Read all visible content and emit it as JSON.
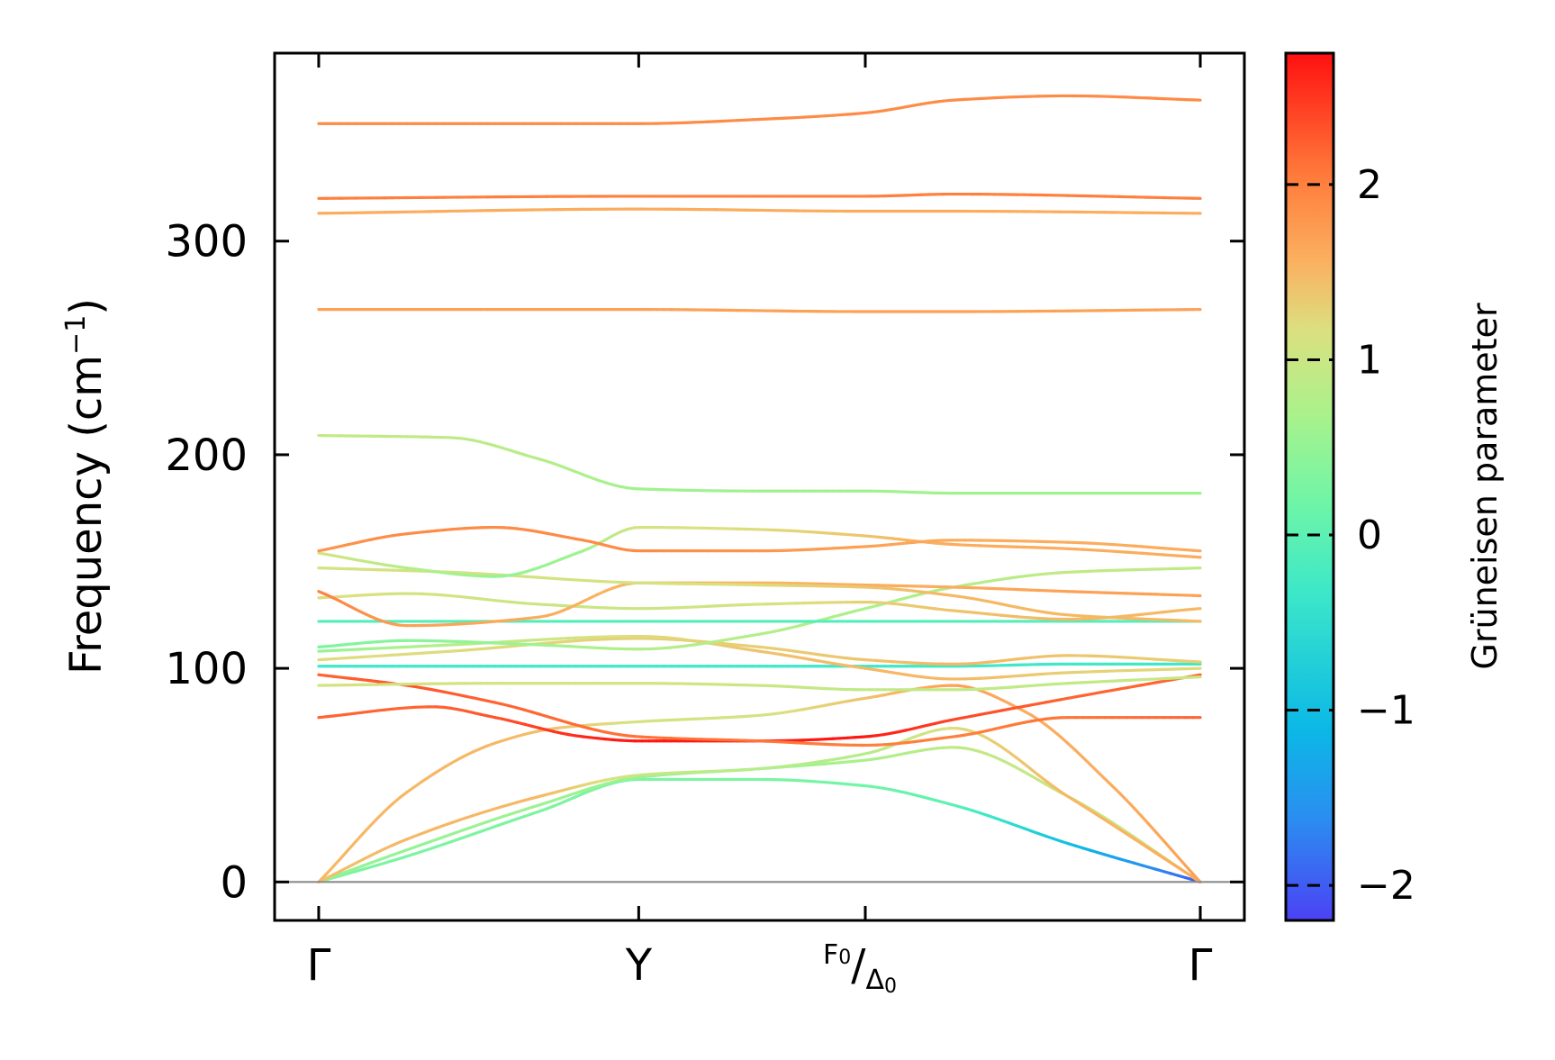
{
  "chart_data": {
    "type": "line",
    "title": "",
    "xlabel": "",
    "ylabel": "Frequency (cm",
    "ylabel_sup": "−1",
    "ylabel_close": ")",
    "ylim": [
      -18,
      388
    ],
    "yticks": [
      0,
      100,
      200,
      300
    ],
    "ytick_labels": [
      "0",
      "100",
      "200",
      "300"
    ],
    "xlim": [
      -0.05,
      1.05
    ],
    "high_symmetry_points": [
      {
        "label": "Γ",
        "x": 0.0
      },
      {
        "label": "Y",
        "x": 0.363
      },
      {
        "label": "F0/Δ0",
        "label_main": "F",
        "label_sub": "0",
        "label_slash": "/",
        "label_denominator": "Δ",
        "label_denominator_sub": "0",
        "x": 0.62
      },
      {
        "label": "Γ",
        "x": 1.0
      }
    ],
    "colorbar": {
      "label": "Grüneisen parameter",
      "vmin": -2.2,
      "vmax": 2.75,
      "ticks": [
        -2,
        -1,
        0,
        1,
        2
      ],
      "tick_labels": [
        "−2",
        "−1",
        "0",
        "1",
        "2"
      ],
      "colormap": "rainbow"
    },
    "series": [
      {
        "name": "branch-1",
        "x": [
          0,
          0.1,
          0.25,
          0.363,
          0.5,
          0.62,
          0.72,
          0.85,
          1.0
        ],
        "y": [
          0,
          12,
          33,
          48,
          48,
          45,
          36,
          18,
          0
        ],
        "gamma": [
          0.3,
          0.3,
          0.3,
          0.3,
          0.3,
          0.2,
          0.0,
          -1.0,
          -2.0
        ]
      },
      {
        "name": "branch-2",
        "x": [
          0,
          0.1,
          0.25,
          0.363,
          0.5,
          0.62,
          0.72,
          0.85,
          1.0
        ],
        "y": [
          0,
          15,
          36,
          49,
          53,
          57,
          63,
          40,
          0
        ],
        "gamma": [
          0.5,
          0.5,
          0.6,
          0.5,
          0.5,
          0.7,
          0.9,
          1.0,
          1.0
        ]
      },
      {
        "name": "branch-3",
        "x": [
          0,
          0.1,
          0.25,
          0.363,
          0.5,
          0.62,
          0.72,
          0.85,
          1.0
        ],
        "y": [
          0,
          20,
          40,
          50,
          53,
          60,
          72,
          40,
          0
        ],
        "gamma": [
          1.4,
          1.5,
          1.5,
          1.0,
          0.8,
          0.8,
          1.2,
          1.5,
          1.6
        ]
      },
      {
        "name": "branch-4",
        "x": [
          0,
          0.1,
          0.2,
          0.27,
          0.363,
          0.5,
          0.62,
          0.72,
          0.8,
          0.9,
          1.0
        ],
        "y": [
          0,
          42,
          65,
          72,
          75,
          78,
          86,
          92,
          80,
          45,
          0
        ],
        "gamma": [
          1.5,
          1.5,
          1.5,
          1.4,
          1.1,
          1.1,
          1.4,
          1.7,
          1.6,
          1.6,
          1.7
        ]
      },
      {
        "name": "branch-5",
        "x": [
          0,
          0.13,
          0.2,
          0.3,
          0.363,
          0.5,
          0.62,
          0.72,
          0.85,
          1.0
        ],
        "y": [
          77,
          82,
          77,
          68,
          66,
          66,
          68,
          76,
          86,
          97
        ],
        "gamma": [
          2.2,
          2.2,
          2.3,
          2.6,
          2.7,
          2.7,
          2.7,
          2.4,
          2.2,
          2.2
        ]
      },
      {
        "name": "branch-6",
        "x": [
          0,
          0.1,
          0.2,
          0.363,
          0.5,
          0.62,
          0.72,
          0.85,
          1.0
        ],
        "y": [
          97,
          92,
          84,
          68,
          66,
          64,
          68,
          77,
          77
        ],
        "gamma": [
          2.2,
          2.3,
          2.2,
          2.1,
          2.1,
          2.0,
          2.0,
          2.1,
          2.2
        ]
      },
      {
        "name": "branch-7",
        "x": [
          0,
          0.2,
          0.363,
          0.5,
          0.62,
          0.72,
          0.85,
          1.0
        ],
        "y": [
          92,
          93,
          93,
          92,
          90,
          90,
          93,
          96
        ],
        "gamma": [
          1.1,
          1.1,
          1.1,
          1.0,
          0.9,
          0.9,
          0.9,
          1.0
        ]
      },
      {
        "name": "branch-8",
        "x": [
          0,
          0.15,
          0.363,
          0.5,
          0.62,
          0.72,
          0.85,
          1.0
        ],
        "y": [
          101,
          101,
          101,
          101,
          101,
          101,
          102,
          102
        ],
        "gamma": [
          -0.3,
          -0.3,
          -0.3,
          -0.3,
          -0.3,
          -0.3,
          -0.3,
          -0.3
        ]
      },
      {
        "name": "branch-9",
        "x": [
          0,
          0.15,
          0.363,
          0.5,
          0.62,
          0.72,
          0.85,
          1.0
        ],
        "y": [
          104,
          108,
          114,
          110,
          104,
          102,
          106,
          103
        ],
        "gamma": [
          1.2,
          1.2,
          1.3,
          1.3,
          1.4,
          1.5,
          1.4,
          1.3
        ]
      },
      {
        "name": "branch-10",
        "x": [
          0,
          0.15,
          0.363,
          0.5,
          0.62,
          0.72,
          0.85,
          1.0
        ],
        "y": [
          108,
          111,
          115,
          108,
          100,
          95,
          98,
          100
        ],
        "gamma": [
          0.5,
          0.8,
          1.2,
          1.4,
          1.5,
          1.5,
          1.3,
          1.2
        ]
      },
      {
        "name": "branch-11",
        "x": [
          0,
          0.1,
          0.25,
          0.363,
          0.5,
          0.62,
          0.72,
          0.85,
          1.0
        ],
        "y": [
          110,
          113,
          111,
          109,
          116,
          128,
          138,
          145,
          147
        ],
        "gamma": [
          0.3,
          0.4,
          0.6,
          0.8,
          0.8,
          0.7,
          0.8,
          0.9,
          0.9
        ]
      },
      {
        "name": "branch-12",
        "x": [
          0,
          0.15,
          0.363,
          0.5,
          0.62,
          0.72,
          0.85,
          1.0
        ],
        "y": [
          122,
          122,
          122,
          122,
          122,
          122,
          122,
          122
        ],
        "gamma": [
          -0.1,
          -0.1,
          -0.1,
          -0.1,
          -0.1,
          -0.1,
          -0.1,
          -0.1
        ]
      },
      {
        "name": "branch-13",
        "x": [
          0,
          0.1,
          0.25,
          0.363,
          0.5,
          0.62,
          0.72,
          0.85,
          1.0
        ],
        "y": [
          133,
          135,
          130,
          128,
          130,
          131,
          127,
          123,
          128
        ],
        "gamma": [
          1.2,
          1.1,
          1.0,
          1.0,
          1.1,
          1.3,
          1.4,
          1.5,
          1.5
        ]
      },
      {
        "name": "branch-14",
        "x": [
          0,
          0.1,
          0.25,
          0.363,
          0.5,
          0.62,
          0.72,
          0.85,
          1.0
        ],
        "y": [
          136,
          120,
          124,
          140,
          140,
          139,
          138,
          136,
          134
        ],
        "gamma": [
          2.0,
          1.7,
          1.6,
          1.5,
          1.5,
          1.6,
          1.6,
          1.7,
          1.7
        ]
      },
      {
        "name": "branch-15",
        "x": [
          0,
          0.15,
          0.363,
          0.5,
          0.62,
          0.72,
          0.85,
          1.0
        ],
        "y": [
          147,
          145,
          140,
          139,
          138,
          134,
          125,
          122
        ],
        "gamma": [
          1.1,
          1.1,
          1.1,
          1.2,
          1.4,
          1.5,
          1.5,
          1.5
        ]
      },
      {
        "name": "branch-16",
        "x": [
          0,
          0.1,
          0.2,
          0.3,
          0.363,
          0.5,
          0.62,
          0.72,
          0.85,
          1.0
        ],
        "y": [
          154,
          147,
          143,
          155,
          166,
          165,
          162,
          158,
          156,
          152
        ],
        "gamma": [
          1.1,
          0.8,
          0.5,
          0.6,
          1.1,
          1.2,
          1.4,
          1.6,
          1.6,
          1.6
        ]
      },
      {
        "name": "branch-17",
        "x": [
          0,
          0.1,
          0.2,
          0.3,
          0.363,
          0.5,
          0.62,
          0.72,
          0.85,
          1.0
        ],
        "y": [
          155,
          163,
          166,
          160,
          155,
          155,
          157,
          160,
          159,
          155
        ],
        "gamma": [
          1.8,
          1.9,
          1.9,
          1.9,
          1.9,
          1.8,
          1.7,
          1.6,
          1.6,
          1.6
        ]
      },
      {
        "name": "branch-18",
        "x": [
          0,
          0.15,
          0.25,
          0.363,
          0.5,
          0.62,
          0.72,
          0.85,
          1.0
        ],
        "y": [
          209,
          208,
          198,
          184,
          183,
          183,
          182,
          182,
          182
        ],
        "gamma": [
          0.9,
          0.9,
          0.8,
          0.6,
          0.6,
          0.6,
          0.6,
          0.6,
          0.6
        ]
      },
      {
        "name": "branch-19",
        "x": [
          0,
          0.363,
          0.62,
          0.72,
          1.0
        ],
        "y": [
          268,
          268,
          267,
          267,
          268
        ],
        "gamma": [
          1.7,
          1.7,
          1.7,
          1.7,
          1.7
        ]
      },
      {
        "name": "branch-20",
        "x": [
          0,
          0.363,
          0.62,
          0.72,
          1.0
        ],
        "y": [
          313,
          315,
          314,
          314,
          313
        ],
        "gamma": [
          1.6,
          1.6,
          1.6,
          1.6,
          1.6
        ]
      },
      {
        "name": "branch-21",
        "x": [
          0,
          0.363,
          0.62,
          0.72,
          1.0
        ],
        "y": [
          320,
          321,
          321,
          322,
          320
        ],
        "gamma": [
          2.0,
          2.0,
          2.0,
          2.0,
          2.0
        ]
      },
      {
        "name": "branch-22",
        "x": [
          0,
          0.363,
          0.5,
          0.62,
          0.72,
          0.85,
          1.0
        ],
        "y": [
          355,
          355,
          357,
          360,
          366,
          368,
          366
        ],
        "gamma": [
          1.9,
          1.9,
          1.9,
          1.9,
          1.9,
          1.9,
          1.9
        ]
      }
    ]
  }
}
